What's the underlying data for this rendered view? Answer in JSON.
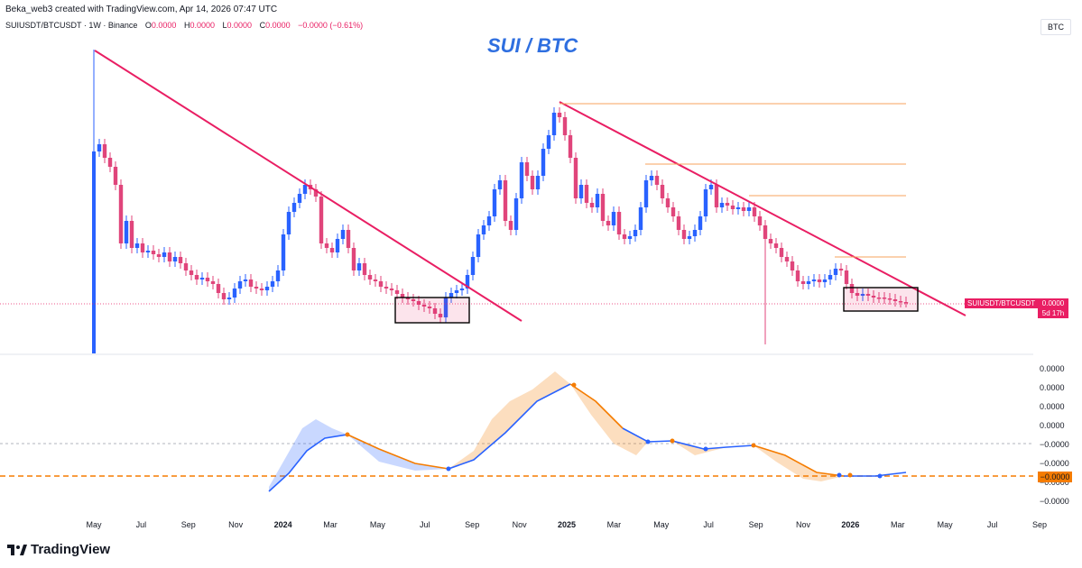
{
  "header": {
    "credit": "Beka_web3 created with TradingView.com, Apr 14, 2026 07:47 UTC",
    "symbol_line": "SUIUSDT/BTCUSDT · 1W · Binance",
    "o_label": "O",
    "o_value": "0.0000",
    "h_label": "H",
    "h_value": "0.0000",
    "l_label": "L",
    "l_value": "0.0000",
    "c_label": "C",
    "c_value": "0.0000",
    "change": "−0.0000 (−0.61%)",
    "currency_badge": "BTC"
  },
  "chart_data": {
    "type": "candlestick",
    "title": "SUI / BTC",
    "x_ticks": [
      {
        "label": "May",
        "bold": false
      },
      {
        "label": "Jul",
        "bold": false
      },
      {
        "label": "Sep",
        "bold": false
      },
      {
        "label": "Nov",
        "bold": false
      },
      {
        "label": "2024",
        "bold": true
      },
      {
        "label": "Mar",
        "bold": false
      },
      {
        "label": "May",
        "bold": false
      },
      {
        "label": "Jul",
        "bold": false
      },
      {
        "label": "Sep",
        "bold": false
      },
      {
        "label": "Nov",
        "bold": false
      },
      {
        "label": "2025",
        "bold": true
      },
      {
        "label": "Mar",
        "bold": false
      },
      {
        "label": "May",
        "bold": false
      },
      {
        "label": "Jul",
        "bold": false
      },
      {
        "label": "Sep",
        "bold": false
      },
      {
        "label": "Nov",
        "bold": false
      },
      {
        "label": "2026",
        "bold": true
      },
      {
        "label": "Mar",
        "bold": false
      },
      {
        "label": "May",
        "bold": false
      },
      {
        "label": "Jul",
        "bold": false
      },
      {
        "label": "Sep",
        "bold": false
      }
    ],
    "price_label": "SUIUSDT/BTCUSDT",
    "price_value": "0.0000",
    "countdown": "5d 17h",
    "oscillator_axis_labels": [
      "0.0000",
      "0.0000",
      "0.0000",
      "0.0000",
      "−0.0000",
      "−0.0000",
      "−0.0000",
      "−0.0000"
    ],
    "oscillator_current_value": "−0.0000",
    "colors": {
      "up": "#2962ff",
      "down": "#e0457b",
      "trendline": "#e91e63",
      "level": "#f7a35c",
      "osc_up": "#2962ff",
      "osc_down": "#f57c00"
    }
  },
  "footer": {
    "brand": "TradingView"
  }
}
